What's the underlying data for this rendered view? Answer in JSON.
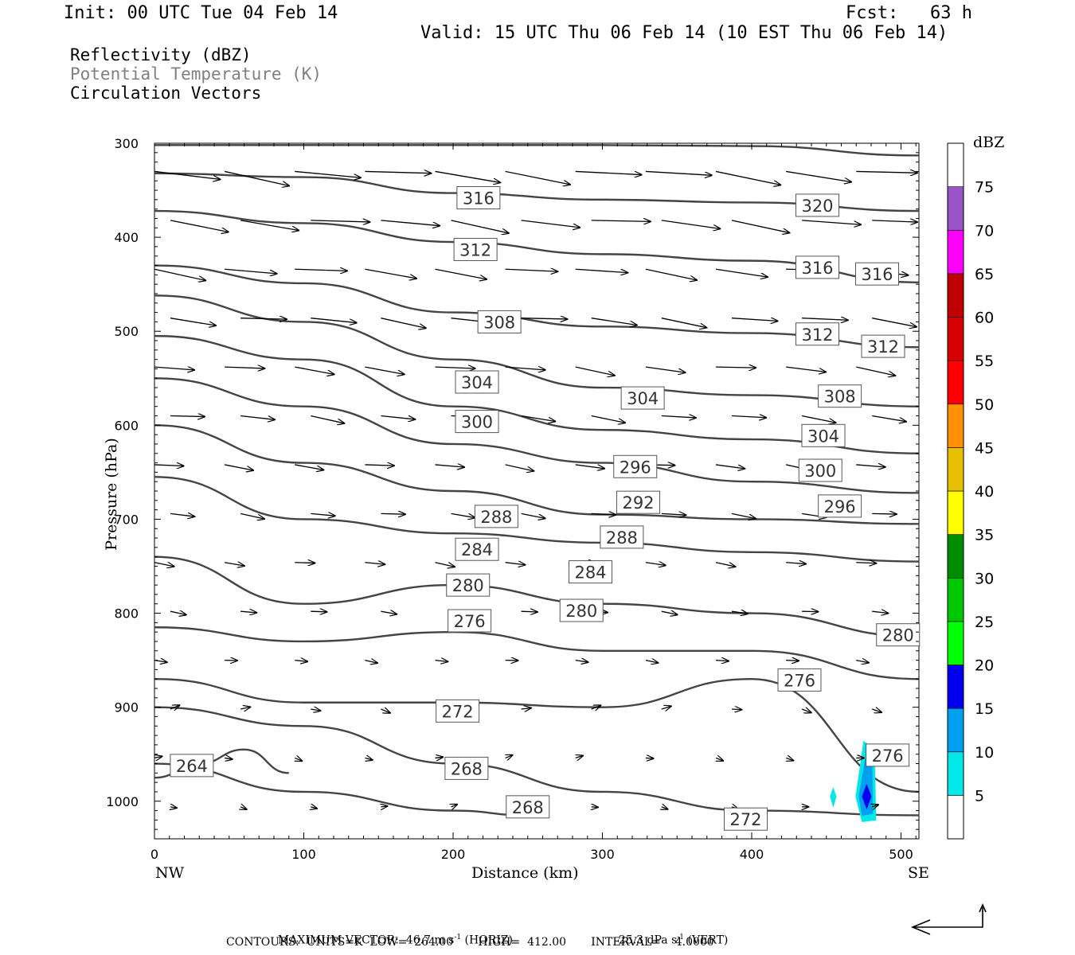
{
  "header": {
    "init": "Init: 00 UTC Tue 04 Feb 14",
    "fcst": "Fcst:   63 h",
    "valid": "Valid: 15 UTC Thu 06 Feb 14 (10 EST Thu 06 Feb 14)"
  },
  "fields": {
    "reflectivity": "Reflectivity (dBZ)",
    "theta": "Potential Temperature (K)",
    "circulation": "Circulation Vectors"
  },
  "axes": {
    "ylabel": "Pressure (hPa)",
    "xlabel": "Distance (km)",
    "left_end": "NW",
    "right_end": "SE"
  },
  "colorbar": {
    "title": "dBZ",
    "levels": [
      "5",
      "10",
      "15",
      "20",
      "25",
      "30",
      "35",
      "40",
      "45",
      "50",
      "55",
      "60",
      "65",
      "70",
      "75"
    ],
    "colors": [
      "#ffffff",
      "#00e8e8",
      "#00a0f0",
      "#0000ee",
      "#00ff00",
      "#00c800",
      "#008c00",
      "#ffff00",
      "#e8c000",
      "#ff9000",
      "#ff0000",
      "#d60000",
      "#c00000",
      "#ff00ff",
      "#9955c8",
      "#ffffff"
    ]
  },
  "footer": {
    "max_vector": "MAXIMUM VECTOR:  46.7 m s",
    "horiz_unit": " (HORIZ)",
    "vert_value": "25.3 dPa s",
    "vert_unit": " (VERT)",
    "contours": "CONTOURS:  UNITS=K  LOW=  264.00       HIGH=  412.00       INTERVAL=    4.0000",
    "superscript": "-1"
  },
  "chart_data": {
    "type": "line",
    "subtype": "vertical cross-section contour plot",
    "xlabel": "Distance (km)",
    "ylabel": "Pressure (hPa)",
    "xlim": [
      0,
      512
    ],
    "ylim": [
      1040,
      300
    ],
    "x_ticks": [
      0,
      100,
      200,
      300,
      400,
      500
    ],
    "y_ticks": [
      300,
      400,
      500,
      600,
      700,
      800,
      900,
      1000
    ],
    "contour_units": "K",
    "contour_low": 264.0,
    "contour_high": 412.0,
    "contour_interval": 4.0,
    "contour_labels": [
      {
        "value": "316",
        "x": 217,
        "p": 358
      },
      {
        "value": "320",
        "x": 444,
        "p": 366
      },
      {
        "value": "312",
        "x": 215,
        "p": 413
      },
      {
        "value": "316",
        "x": 444,
        "p": 432
      },
      {
        "value": "316",
        "x": 484,
        "p": 439
      },
      {
        "value": "308",
        "x": 231,
        "p": 490
      },
      {
        "value": "312",
        "x": 444,
        "p": 503
      },
      {
        "value": "312",
        "x": 488,
        "p": 516
      },
      {
        "value": "304",
        "x": 216,
        "p": 554
      },
      {
        "value": "304",
        "x": 327,
        "p": 571
      },
      {
        "value": "308",
        "x": 459,
        "p": 569
      },
      {
        "value": "300",
        "x": 216,
        "p": 596
      },
      {
        "value": "304",
        "x": 448,
        "p": 611
      },
      {
        "value": "296",
        "x": 322,
        "p": 644
      },
      {
        "value": "300",
        "x": 446,
        "p": 648
      },
      {
        "value": "292",
        "x": 324,
        "p": 682
      },
      {
        "value": "296",
        "x": 459,
        "p": 686
      },
      {
        "value": "288",
        "x": 229,
        "p": 697
      },
      {
        "value": "288",
        "x": 313,
        "p": 719
      },
      {
        "value": "284",
        "x": 216,
        "p": 732
      },
      {
        "value": "284",
        "x": 292,
        "p": 756
      },
      {
        "value": "280",
        "x": 210,
        "p": 770
      },
      {
        "value": "280",
        "x": 286,
        "p": 797
      },
      {
        "value": "276",
        "x": 211,
        "p": 808
      },
      {
        "value": "280",
        "x": 498,
        "p": 823
      },
      {
        "value": "276",
        "x": 432,
        "p": 871
      },
      {
        "value": "272",
        "x": 203,
        "p": 904
      },
      {
        "value": "276",
        "x": 491,
        "p": 951
      },
      {
        "value": "264",
        "x": 25,
        "p": 962
      },
      {
        "value": "268",
        "x": 209,
        "p": 965
      },
      {
        "value": "268",
        "x": 250,
        "p": 1006
      },
      {
        "value": "272",
        "x": 396,
        "p": 1019
      }
    ],
    "theta_contours": [
      {
        "value": 320,
        "points": [
          [
            0,
            302
          ],
          [
            150,
            302
          ],
          [
            300,
            302
          ],
          [
            400,
            303
          ],
          [
            512,
            313
          ]
        ]
      },
      {
        "value": 316,
        "points": [
          [
            0,
            332
          ],
          [
            100,
            336
          ],
          [
            200,
            353
          ],
          [
            300,
            360
          ],
          [
            400,
            363
          ],
          [
            512,
            372
          ]
        ]
      },
      {
        "value": 312,
        "points": [
          [
            0,
            372
          ],
          [
            100,
            385
          ],
          [
            200,
            405
          ],
          [
            300,
            418
          ],
          [
            400,
            425
          ],
          [
            512,
            448
          ]
        ]
      },
      {
        "value": 308,
        "points": [
          [
            0,
            430
          ],
          [
            100,
            449
          ],
          [
            200,
            480
          ],
          [
            300,
            495
          ],
          [
            400,
            502
          ],
          [
            512,
            517
          ]
        ]
      },
      {
        "value": 304,
        "points": [
          [
            0,
            462
          ],
          [
            100,
            490
          ],
          [
            200,
            530
          ],
          [
            300,
            560
          ],
          [
            400,
            568
          ],
          [
            512,
            580
          ]
        ]
      },
      {
        "value": 300,
        "points": [
          [
            0,
            505
          ],
          [
            100,
            530
          ],
          [
            200,
            580
          ],
          [
            300,
            605
          ],
          [
            400,
            615
          ],
          [
            512,
            630
          ]
        ]
      },
      {
        "value": 296,
        "points": [
          [
            0,
            550
          ],
          [
            100,
            580
          ],
          [
            200,
            620
          ],
          [
            300,
            640
          ],
          [
            400,
            660
          ],
          [
            512,
            672
          ]
        ]
      },
      {
        "value": 292,
        "points": [
          [
            0,
            600
          ],
          [
            100,
            640
          ],
          [
            200,
            670
          ],
          [
            300,
            695
          ],
          [
            400,
            700
          ],
          [
            512,
            705
          ]
        ]
      },
      {
        "value": 288,
        "points": [
          [
            0,
            655
          ],
          [
            100,
            700
          ],
          [
            200,
            715
          ],
          [
            300,
            725
          ],
          [
            400,
            735
          ],
          [
            512,
            745
          ]
        ]
      },
      {
        "value": 284,
        "points": [
          [
            0,
            740
          ],
          [
            100,
            790
          ],
          [
            200,
            770
          ],
          [
            300,
            790
          ],
          [
            400,
            800
          ],
          [
            512,
            825
          ]
        ]
      },
      {
        "value": 280,
        "points": [
          [
            0,
            815
          ],
          [
            100,
            830
          ],
          [
            200,
            820
          ],
          [
            300,
            840
          ],
          [
            400,
            840
          ],
          [
            512,
            870
          ]
        ]
      },
      {
        "value": 276,
        "points": [
          [
            0,
            870
          ],
          [
            100,
            895
          ],
          [
            200,
            895
          ],
          [
            300,
            900
          ],
          [
            400,
            870
          ],
          [
            512,
            990
          ]
        ]
      },
      {
        "value": 272,
        "points": [
          [
            0,
            900
          ],
          [
            100,
            920
          ],
          [
            200,
            960
          ],
          [
            300,
            990
          ],
          [
            400,
            1010
          ],
          [
            512,
            1015
          ]
        ]
      },
      {
        "value": 268,
        "points": [
          [
            0,
            960
          ],
          [
            100,
            990
          ],
          [
            200,
            1010
          ],
          [
            250,
            1015
          ]
        ]
      },
      {
        "value": 264,
        "points": [
          [
            0,
            975
          ],
          [
            30,
            960
          ],
          [
            60,
            945
          ],
          [
            90,
            970
          ]
        ]
      }
    ],
    "reflectivity_echo": {
      "x_center": 477,
      "p_center": 995,
      "max_dbz_band": "15-20"
    }
  }
}
